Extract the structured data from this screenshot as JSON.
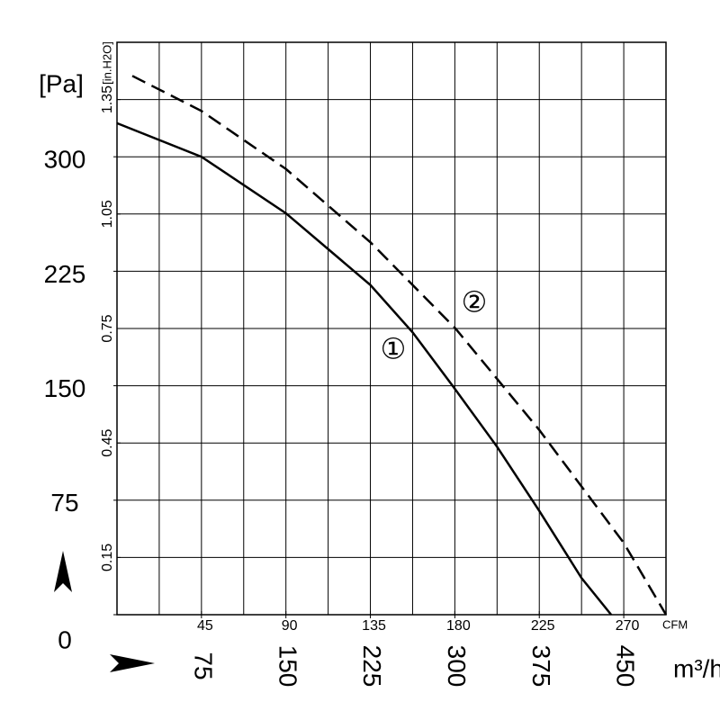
{
  "chart_data": {
    "type": "line",
    "y_label": "[Pa]",
    "y2_label": "[in.H2O]",
    "x_label": "m³/h",
    "x2_label": "CFM",
    "xlim": [
      0,
      487.5
    ],
    "xticks": [
      75,
      150,
      225,
      300,
      375,
      450
    ],
    "x2lim": [
      0,
      292.5
    ],
    "x2ticks": [
      45,
      90,
      135,
      180,
      225,
      270
    ],
    "ylim": [
      0,
      375
    ],
    "yticks": [
      0,
      75,
      150,
      225,
      300
    ],
    "y2lim": [
      0,
      1.5
    ],
    "y2ticks": [
      0.15,
      0.45,
      0.75,
      1.05,
      1.35
    ],
    "grid": true,
    "series": [
      {
        "name": "①",
        "color": "#000000",
        "dashed": false,
        "x": [
          0,
          75,
          150,
          225,
          262.5,
          300,
          337.5,
          375,
          412.5,
          438.8
        ],
        "values": [
          322,
          300,
          263,
          216,
          185,
          148,
          110,
          68,
          24,
          0
        ]
      },
      {
        "name": "②",
        "color": "#000000",
        "dashed": true,
        "x": [
          13.6,
          75,
          150,
          225,
          300,
          375,
          450,
          487.5
        ],
        "values": [
          353,
          330,
          292,
          244,
          188,
          121,
          47,
          0
        ]
      }
    ]
  }
}
